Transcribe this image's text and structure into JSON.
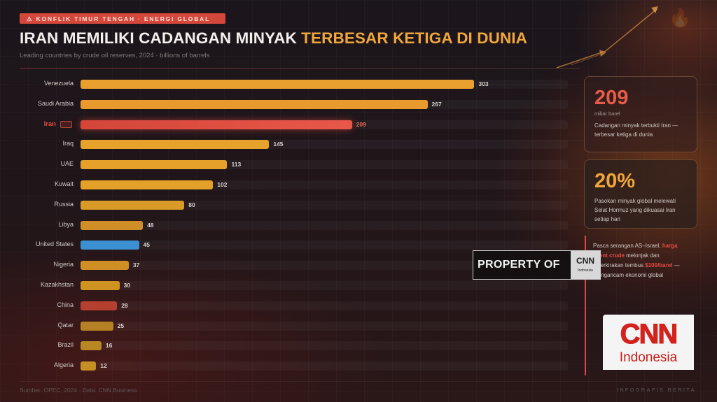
{
  "header": {
    "tag": "⚠ KONFLIK TIMUR TENGAH · ENERGI GLOBAL",
    "title_main": "IRAN MEMILIKI CADANGAN MINYAK ",
    "title_highlight": "TERBESAR KETIGA DI DUNIA",
    "subtitle": "Leading countries by crude oil reserves, 2024 · billions of barrels"
  },
  "colors": {
    "default_bar": "#e9a02f",
    "highlight_bar": "#e0483c",
    "us_bar": "#3c8fd0",
    "china_bar": "#b6402f",
    "accent_gold": "#f0a63a",
    "accent_red": "#e0483c"
  },
  "chart_data": {
    "type": "bar",
    "orientation": "horizontal",
    "title": "Iran memiliki cadangan minyak terbesar ketiga di dunia",
    "subtitle": "Leading countries by crude oil reserves, 2024 · billions of barrels",
    "xlabel": "billions of barrels",
    "ylabel": "",
    "xlim": [
      0,
      375
    ],
    "grid": false,
    "legend": "none",
    "categories": [
      "Venezuela",
      "Saudi Arabia",
      "Iran",
      "Iraq",
      "UAE",
      "Kuwait",
      "Russia",
      "Libya",
      "United States",
      "Nigeria",
      "Kazakhstan",
      "China",
      "Qatar",
      "Brazil",
      "Algeria"
    ],
    "values": [
      303,
      267,
      209,
      145,
      113,
      102,
      80,
      48,
      45,
      37,
      30,
      28,
      25,
      16,
      12
    ],
    "highlight": "Iran",
    "annotations": [
      "Iran highlighted in red",
      "United States in blue"
    ]
  },
  "rows": [
    {
      "label": "Venezuela",
      "value": "303",
      "pct": 80.8,
      "color": "#e9a02f",
      "hl": false
    },
    {
      "label": "Saudi Arabia",
      "value": "267",
      "pct": 71.2,
      "color": "#e99a2d",
      "hl": false
    },
    {
      "label": "Iran",
      "value": "209",
      "pct": 55.7,
      "color": "#e0483c",
      "hl": true
    },
    {
      "label": "Iraq",
      "value": "145",
      "pct": 38.7,
      "color": "#e7a22c",
      "hl": false
    },
    {
      "label": "UAE",
      "value": "113",
      "pct": 30.1,
      "color": "#e6a12b",
      "hl": false
    },
    {
      "label": "Kuwait",
      "value": "102",
      "pct": 27.2,
      "color": "#e4a12a",
      "hl": false
    },
    {
      "label": "Russia",
      "value": "80",
      "pct": 21.3,
      "color": "#d99a28",
      "hl": false
    },
    {
      "label": "Libya",
      "value": "48",
      "pct": 12.8,
      "color": "#d08f26",
      "hl": false
    },
    {
      "label": "United States",
      "value": "45",
      "pct": 12.0,
      "color": "#3c8fd0",
      "hl": false
    },
    {
      "label": "Nigeria",
      "value": "37",
      "pct": 9.9,
      "color": "#cf8f24",
      "hl": false
    },
    {
      "label": "Kazakhstan",
      "value": "30",
      "pct": 8.0,
      "color": "#cf9322",
      "hl": false
    },
    {
      "label": "China",
      "value": "28",
      "pct": 7.5,
      "color": "#b6402f",
      "hl": false
    },
    {
      "label": "Qatar",
      "value": "25",
      "pct": 6.7,
      "color": "#b68024",
      "hl": false
    },
    {
      "label": "Brazil",
      "value": "16",
      "pct": 4.3,
      "color": "#b88622",
      "hl": false
    },
    {
      "label": "Algeria",
      "value": "12",
      "pct": 3.2,
      "color": "#c48f24",
      "hl": false
    }
  ],
  "cards": {
    "reserves": {
      "big": "209",
      "unit": "miliar barel",
      "desc": "Cadangan minyak terbukti Iran — terbesar ketiga di dunia"
    },
    "hormuz": {
      "big": "20%",
      "desc": "Pasokan minyak global melewati Selat Hormuz yang dikuasai Iran setiap hari"
    },
    "note": {
      "p1": "Pasca serangan AS–Israel, ",
      "r1": "harga Brent crude",
      "p2": " melonjak dan diperkirakan tembus ",
      "r2": "$100/barel",
      "p3": " — mengancam ekonomi global"
    }
  },
  "watermark": {
    "text": "PROPERTY OF",
    "logo": "CNN",
    "logo_sub": "Indonesia"
  },
  "logo": {
    "cnn": "CNN",
    "sub": "Indonesia"
  },
  "footer": {
    "source": "Sumber: OPEC, 2024 · Data: CNN Business",
    "right": "INFOGRAFIS BERITA"
  }
}
